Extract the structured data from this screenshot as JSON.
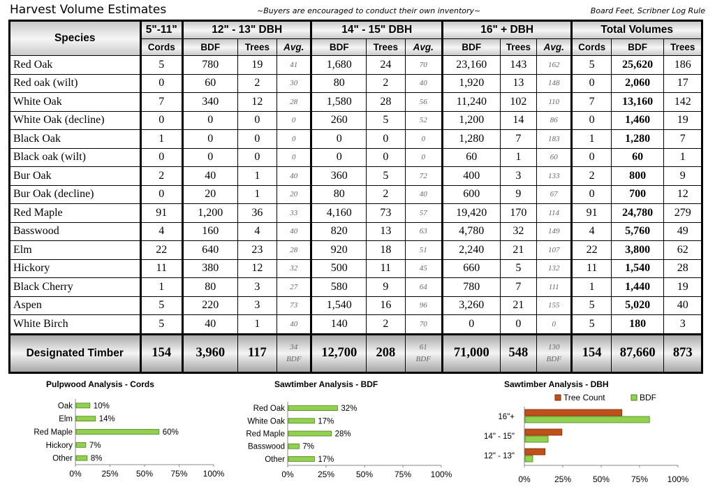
{
  "header": {
    "title": "Harvest Volume Estimates",
    "note": "~Buyers are encouraged to conduct their own inventory~",
    "rule": "Board Feet, Scribner Log Rule"
  },
  "table": {
    "group_headers": {
      "species": "Species",
      "small": "5\"-11\"",
      "d12": "12\" - 13\"  DBH",
      "d14": "14\" - 15\"  DBH",
      "d16": "16\" + DBH",
      "total": "Total Volumes"
    },
    "sub_headers": {
      "cords": "Cords",
      "bdf": "BDF",
      "trees": "Trees",
      "avg": "Avg."
    },
    "rows": [
      {
        "species": "Red Oak",
        "cords": "5",
        "b12": "780",
        "t12": "19",
        "a12": "41",
        "b14": "1,680",
        "t14": "24",
        "a14": "70",
        "b16": "23,160",
        "t16": "143",
        "a16": "162",
        "tc": "5",
        "tb": "25,620",
        "tt": "186"
      },
      {
        "species": "Red oak (wilt)",
        "cords": "0",
        "b12": "60",
        "t12": "2",
        "a12": "30",
        "b14": "80",
        "t14": "2",
        "a14": "40",
        "b16": "1,920",
        "t16": "13",
        "a16": "148",
        "tc": "0",
        "tb": "2,060",
        "tt": "17"
      },
      {
        "species": "White Oak",
        "cords": "7",
        "b12": "340",
        "t12": "12",
        "a12": "28",
        "b14": "1,580",
        "t14": "28",
        "a14": "56",
        "b16": "11,240",
        "t16": "102",
        "a16": "110",
        "tc": "7",
        "tb": "13,160",
        "tt": "142"
      },
      {
        "species": "White Oak (decline)",
        "cords": "0",
        "b12": "0",
        "t12": "0",
        "a12": "0",
        "b14": "260",
        "t14": "5",
        "a14": "52",
        "b16": "1,200",
        "t16": "14",
        "a16": "86",
        "tc": "0",
        "tb": "1,460",
        "tt": "19"
      },
      {
        "species": "Black Oak",
        "cords": "1",
        "b12": "0",
        "t12": "0",
        "a12": "0",
        "b14": "0",
        "t14": "0",
        "a14": "0",
        "b16": "1,280",
        "t16": "7",
        "a16": "183",
        "tc": "1",
        "tb": "1,280",
        "tt": "7"
      },
      {
        "species": "Black oak (wilt)",
        "cords": "0",
        "b12": "0",
        "t12": "0",
        "a12": "0",
        "b14": "0",
        "t14": "0",
        "a14": "0",
        "b16": "60",
        "t16": "1",
        "a16": "60",
        "tc": "0",
        "tb": "60",
        "tt": "1"
      },
      {
        "species": "Bur Oak",
        "cords": "2",
        "b12": "40",
        "t12": "1",
        "a12": "40",
        "b14": "360",
        "t14": "5",
        "a14": "72",
        "b16": "400",
        "t16": "3",
        "a16": "133",
        "tc": "2",
        "tb": "800",
        "tt": "9"
      },
      {
        "species": "Bur Oak (decline)",
        "cords": "0",
        "b12": "20",
        "t12": "1",
        "a12": "20",
        "b14": "80",
        "t14": "2",
        "a14": "40",
        "b16": "600",
        "t16": "9",
        "a16": "67",
        "tc": "0",
        "tb": "700",
        "tt": "12"
      },
      {
        "species": "Red Maple",
        "cords": "91",
        "b12": "1,200",
        "t12": "36",
        "a12": "33",
        "b14": "4,160",
        "t14": "73",
        "a14": "57",
        "b16": "19,420",
        "t16": "170",
        "a16": "114",
        "tc": "91",
        "tb": "24,780",
        "tt": "279"
      },
      {
        "species": "Basswood",
        "cords": "4",
        "b12": "160",
        "t12": "4",
        "a12": "40",
        "b14": "820",
        "t14": "13",
        "a14": "63",
        "b16": "4,780",
        "t16": "32",
        "a16": "149",
        "tc": "4",
        "tb": "5,760",
        "tt": "49"
      },
      {
        "species": "Elm",
        "cords": "22",
        "b12": "640",
        "t12": "23",
        "a12": "28",
        "b14": "920",
        "t14": "18",
        "a14": "51",
        "b16": "2,240",
        "t16": "21",
        "a16": "107",
        "tc": "22",
        "tb": "3,800",
        "tt": "62"
      },
      {
        "species": "Hickory",
        "cords": "11",
        "b12": "380",
        "t12": "12",
        "a12": "32",
        "b14": "500",
        "t14": "11",
        "a14": "45",
        "b16": "660",
        "t16": "5",
        "a16": "132",
        "tc": "11",
        "tb": "1,540",
        "tt": "28"
      },
      {
        "species": "Black Cherry",
        "cords": "1",
        "b12": "80",
        "t12": "3",
        "a12": "27",
        "b14": "580",
        "t14": "9",
        "a14": "64",
        "b16": "780",
        "t16": "7",
        "a16": "111",
        "tc": "1",
        "tb": "1,440",
        "tt": "19"
      },
      {
        "species": "Aspen",
        "cords": "5",
        "b12": "220",
        "t12": "3",
        "a12": "73",
        "b14": "1,540",
        "t14": "16",
        "a14": "96",
        "b16": "3,260",
        "t16": "21",
        "a16": "155",
        "tc": "5",
        "tb": "5,020",
        "tt": "40"
      },
      {
        "species": "White Birch",
        "cords": "5",
        "b12": "40",
        "t12": "1",
        "a12": "40",
        "b14": "140",
        "t14": "2",
        "a14": "70",
        "b16": "0",
        "t16": "0",
        "a16": "0",
        "tc": "5",
        "tb": "180",
        "tt": "3"
      }
    ],
    "total": {
      "label": "Designated Timber",
      "cords": "154",
      "b12": "3,960",
      "t12": "117",
      "a12": "34",
      "b14": "12,700",
      "t14": "208",
      "a14": "61",
      "b16": "71,000",
      "t16": "548",
      "a16": "130",
      "avg_unit": "BDF",
      "tc": "154",
      "tb": "87,660",
      "tt": "873"
    }
  },
  "charts": {
    "pulpwood_title": "Pulpwood Analysis - Cords",
    "sawtimber_bdf_title": "Sawtimber Analysis - BDF",
    "sawtimber_dbh_title": "Sawtimber Analysis - DBH",
    "legend_tree_count": "Tree Count",
    "legend_bdf": "BDF",
    "color_green": "#92d050",
    "color_brown": "#c0501a"
  },
  "chart_data": [
    {
      "type": "bar",
      "orientation": "horizontal",
      "title": "Pulpwood Analysis - Cords",
      "categories": [
        "Oak",
        "Elm",
        "Red Maple",
        "Hickory",
        "Other"
      ],
      "values": [
        0.1,
        0.14,
        0.6,
        0.07,
        0.08
      ],
      "data_labels": [
        "10%",
        "14%",
        "60%",
        "7%",
        "8%"
      ],
      "xlim": [
        0,
        1
      ],
      "xticks": [
        "0%",
        "25%",
        "50%",
        "75%",
        "100%"
      ],
      "grid": false
    },
    {
      "type": "bar",
      "orientation": "horizontal",
      "title": "Sawtimber Analysis - BDF",
      "categories": [
        "Red Oak",
        "White Oak",
        "Red Maple",
        "Basswood",
        "Other"
      ],
      "values": [
        0.32,
        0.17,
        0.28,
        0.07,
        0.17
      ],
      "data_labels": [
        "32%",
        "17%",
        "28%",
        "7%",
        "17%"
      ],
      "xlim": [
        0,
        1
      ],
      "xticks": [
        "0%",
        "25%",
        "50%",
        "75%",
        "100%"
      ],
      "grid": false
    },
    {
      "type": "bar",
      "orientation": "horizontal",
      "title": "Sawtimber Analysis - DBH",
      "categories": [
        "16\"+",
        "14\" - 15\"",
        "12\" - 13\""
      ],
      "series": [
        {
          "name": "Tree Count",
          "values": [
            0.63,
            0.24,
            0.13
          ]
        },
        {
          "name": "BDF",
          "values": [
            0.81,
            0.15,
            0.05
          ]
        }
      ],
      "xlim": [
        0,
        1
      ],
      "xticks": [
        "0%",
        "25%",
        "50%",
        "75%",
        "100%"
      ],
      "legend": "top-right",
      "grid": false
    }
  ]
}
